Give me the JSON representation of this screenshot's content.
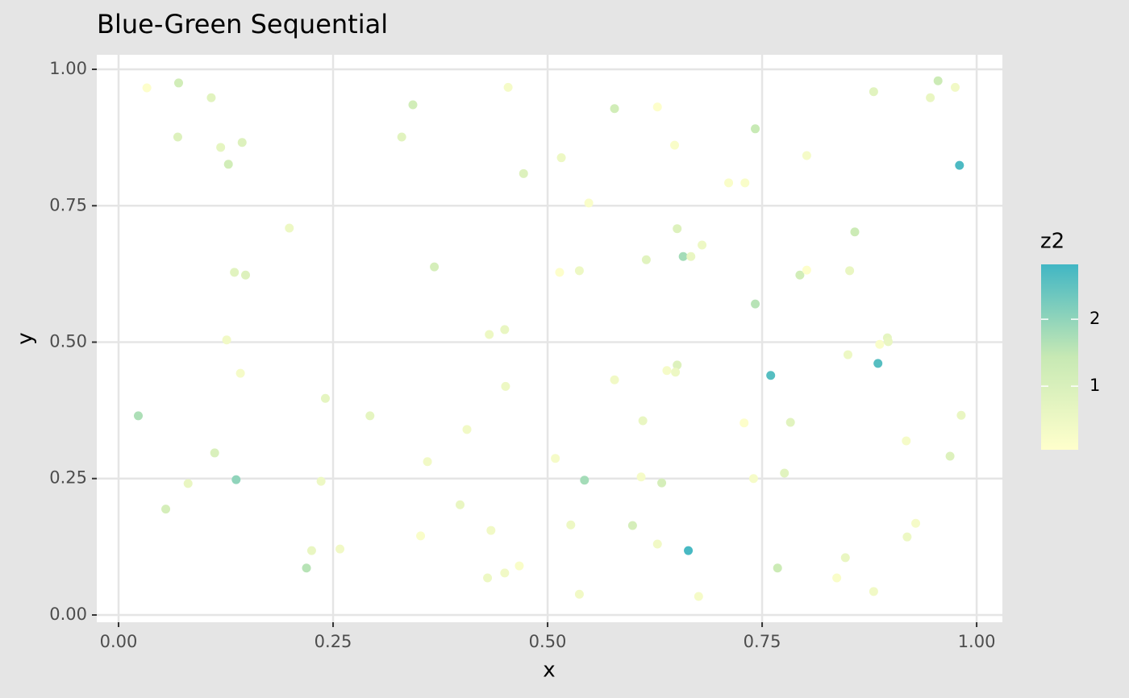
{
  "chart_data": {
    "type": "scatter",
    "title": "Blue-Green Sequential",
    "x_label": "x",
    "y_label": "y",
    "xlim": [
      -0.0254,
      1.03
    ],
    "ylim": [
      -0.0133,
      1.0266
    ],
    "xticks": [
      {
        "value": 0,
        "label": "0.00"
      },
      {
        "value": 0.25,
        "label": "0.25"
      },
      {
        "value": 0.5,
        "label": "0.50"
      },
      {
        "value": 0.75,
        "label": "0.75"
      },
      {
        "value": 1,
        "label": "1.00"
      }
    ],
    "yticks": [
      {
        "value": 0,
        "label": "0.00"
      },
      {
        "value": 0.25,
        "label": "0.25"
      },
      {
        "value": 0.5,
        "label": "0.50"
      },
      {
        "value": 0.75,
        "label": "0.75"
      },
      {
        "value": 1,
        "label": "1.00"
      }
    ],
    "grid": true,
    "x": [
      0.033,
      0.07,
      0.069,
      0.108,
      0.119,
      0.144,
      0.128,
      0.199,
      0.135,
      0.148,
      0.126,
      0.142,
      0.023,
      0.112,
      0.137,
      0.081,
      0.055,
      0.219,
      0.225,
      0.258,
      0.236,
      0.241,
      0.293,
      0.33,
      0.343,
      0.368,
      0.454,
      0.472,
      0.36,
      0.406,
      0.398,
      0.352,
      0.434,
      0.43,
      0.45,
      0.467,
      0.432,
      0.45,
      0.451,
      0.509,
      0.514,
      0.516,
      0.537,
      0.548,
      0.578,
      0.628,
      0.648,
      0.578,
      0.543,
      0.527,
      0.537,
      0.599,
      0.611,
      0.609,
      0.633,
      0.628,
      0.664,
      0.676,
      0.615,
      0.658,
      0.667,
      0.651,
      0.68,
      0.639,
      0.651,
      0.649,
      0.711,
      0.73,
      0.742,
      0.742,
      0.76,
      0.729,
      0.74,
      0.776,
      0.783,
      0.768,
      0.802,
      0.794,
      0.802,
      0.858,
      0.852,
      0.85,
      0.885,
      0.887,
      0.896,
      0.897,
      0.88,
      0.946,
      0.955,
      0.975,
      0.98,
      0.982,
      0.918,
      0.969,
      0.929,
      0.919,
      0.847,
      0.837,
      0.88
    ],
    "y": [
      0.966,
      0.975,
      0.876,
      0.948,
      0.857,
      0.866,
      0.826,
      0.709,
      0.628,
      0.623,
      0.504,
      0.443,
      0.365,
      0.297,
      0.248,
      0.241,
      0.194,
      0.086,
      0.118,
      0.121,
      0.245,
      0.397,
      0.365,
      0.876,
      0.935,
      0.638,
      0.967,
      0.809,
      0.281,
      0.34,
      0.202,
      0.145,
      0.155,
      0.068,
      0.077,
      0.09,
      0.514,
      0.523,
      0.419,
      0.287,
      0.628,
      0.838,
      0.631,
      0.755,
      0.928,
      0.931,
      0.861,
      0.431,
      0.247,
      0.165,
      0.038,
      0.164,
      0.356,
      0.253,
      0.242,
      0.13,
      0.118,
      0.034,
      0.651,
      0.657,
      0.657,
      0.708,
      0.678,
      0.448,
      0.458,
      0.445,
      0.792,
      0.792,
      0.891,
      0.57,
      0.439,
      0.352,
      0.25,
      0.26,
      0.353,
      0.086,
      0.842,
      0.623,
      0.632,
      0.702,
      0.631,
      0.477,
      0.461,
      0.496,
      0.508,
      0.501,
      0.959,
      0.948,
      0.979,
      0.967,
      0.824,
      0.366,
      0.319,
      0.291,
      0.168,
      0.143,
      0.105,
      0.068,
      0.043
    ],
    "z2": [
      0.1,
      1.2,
      0.9,
      0.8,
      0.7,
      0.9,
      1.2,
      0.5,
      0.8,
      0.9,
      0.4,
      0.3,
      1.7,
      1.0,
      2.0,
      0.6,
      1.1,
      1.6,
      0.6,
      0.4,
      0.5,
      0.7,
      0.7,
      0.8,
      1.2,
      1.1,
      0.3,
      0.9,
      0.4,
      0.4,
      0.6,
      0.2,
      0.4,
      0.5,
      0.4,
      0.2,
      0.5,
      0.6,
      0.5,
      0.3,
      0.1,
      0.5,
      0.5,
      0.2,
      1.2,
      0.1,
      0.2,
      0.4,
      1.8,
      0.5,
      0.4,
      1.1,
      0.6,
      0.3,
      1.1,
      0.4,
      2.75,
      0.3,
      0.8,
      1.8,
      0.6,
      0.9,
      0.5,
      0.3,
      0.9,
      0.5,
      0.2,
      0.2,
      1.4,
      1.6,
      2.6,
      0.1,
      0.3,
      0.8,
      0.8,
      1.3,
      0.3,
      1.2,
      0.1,
      1.3,
      0.6,
      0.5,
      2.6,
      0.2,
      0.7,
      0.6,
      0.8,
      0.6,
      1.3,
      0.4,
      2.7,
      0.6,
      0.3,
      0.9,
      0.3,
      0.5,
      0.6,
      0.2,
      0.4
    ],
    "colorbar": {
      "title": "z2",
      "lim": [
        0.05,
        2.82
      ],
      "ticks": [
        1,
        2
      ],
      "colors": [
        "#ffffcc",
        "#c7e9b4",
        "#41b6c4"
      ]
    }
  }
}
